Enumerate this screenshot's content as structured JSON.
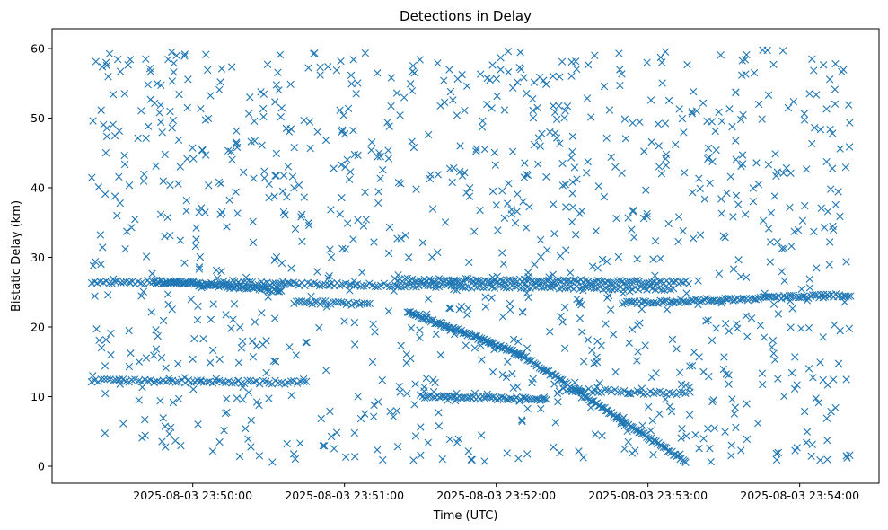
{
  "chart_data": {
    "type": "scatter",
    "title": "Detections in Delay",
    "xlabel": "Time (UTC)",
    "ylabel": "Bistatic Delay (km)",
    "marker": "x",
    "color": "#1f77b4",
    "grid": false,
    "x_range": [
      "2025-08-03 23:49:20",
      "2025-08-03 23:54:20"
    ],
    "ylim": [
      -2.5,
      63
    ],
    "x_ticks": [
      "2025-08-03 23:50:00",
      "2025-08-03 23:51:00",
      "2025-08-03 23:52:00",
      "2025-08-03 23:53:00",
      "2025-08-03 23:54:00"
    ],
    "y_ticks": [
      0,
      10,
      20,
      30,
      40,
      50,
      60
    ],
    "series": [
      {
        "tracks": [
          {
            "x_start": "2025-08-03 23:49:45",
            "x_end": "2025-08-03 23:50:35",
            "y_start": 26.6,
            "y_end": 25.2,
            "count": 70
          },
          {
            "x_start": "2025-08-03 23:51:25",
            "x_end": "2025-08-03 23:52:10",
            "y_start": 22.2,
            "y_end": 16.0,
            "count": 90
          },
          {
            "x_start": "2025-08-03 23:52:10",
            "x_end": "2025-08-03 23:53:15",
            "y_start": 16.0,
            "y_end": 0.6,
            "count": 110
          },
          {
            "x_start": "2025-08-03 23:49:20",
            "x_end": "2025-08-03 23:53:10",
            "y_start": 26.5,
            "y_end": 25.5,
            "count": 200
          },
          {
            "x_start": "2025-08-03 23:51:20",
            "x_end": "2025-08-03 23:53:15",
            "y_start": 26.8,
            "y_end": 26.4,
            "count": 120
          },
          {
            "x_start": "2025-08-03 23:52:50",
            "x_end": "2025-08-03 23:54:20",
            "y_start": 23.4,
            "y_end": 24.6,
            "count": 110
          },
          {
            "x_start": "2025-08-03 23:49:20",
            "x_end": "2025-08-03 23:50:45",
            "y_start": 12.3,
            "y_end": 12.0,
            "count": 70
          },
          {
            "x_start": "2025-08-03 23:51:30",
            "x_end": "2025-08-03 23:52:20",
            "y_start": 10.0,
            "y_end": 9.6,
            "count": 60
          },
          {
            "x_start": "2025-08-03 23:50:40",
            "x_end": "2025-08-03 23:51:10",
            "y_start": 23.6,
            "y_end": 23.3,
            "count": 30
          },
          {
            "x_start": "2025-08-03 23:52:25",
            "x_end": "2025-08-03 23:53:15",
            "y_start": 11.0,
            "y_end": 10.4,
            "count": 40
          }
        ],
        "clutter": {
          "x_range": [
            "2025-08-03 23:49:20",
            "2025-08-03 23:54:20"
          ],
          "y_range": [
            0.5,
            59.8
          ],
          "count": 1100
        }
      }
    ]
  }
}
